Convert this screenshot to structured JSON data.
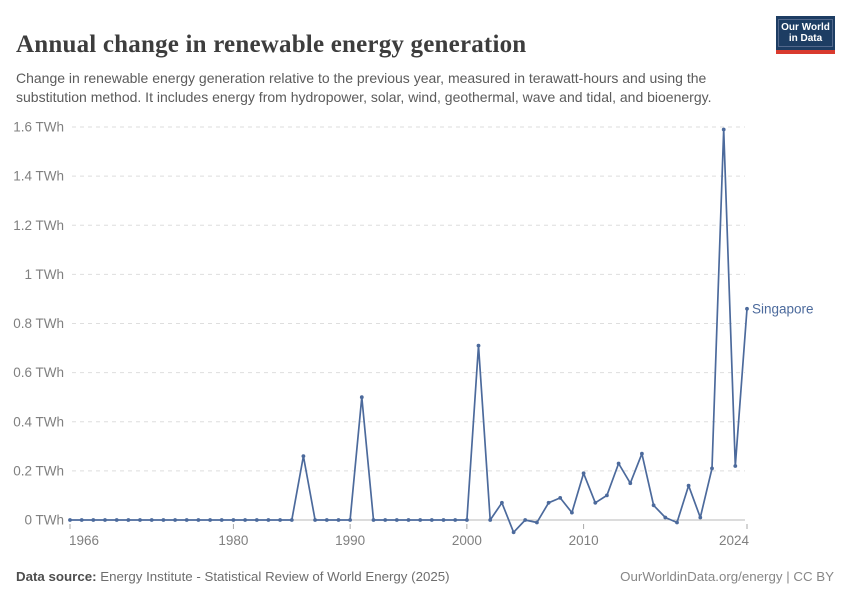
{
  "header": {
    "title": "Annual change in renewable energy generation",
    "subtitle": "Change in renewable energy generation relative to the previous year, measured in terawatt-hours and using the substitution method. It includes energy from hydropower, solar, wind, geothermal, wave and tidal, and bioenergy.",
    "logo": {
      "line1": "Our World",
      "line2": "in Data"
    }
  },
  "footer": {
    "source_label": "Data source:",
    "source_text": "Energy Institute - Statistical Review of World Energy (2025)",
    "credit": "OurWorldinData.org/energy | CC BY"
  },
  "colors": {
    "accent": "#4c6a9c",
    "logo_navy": "#1d3d63",
    "logo_red": "#d93a2e",
    "gridline": "#dedede",
    "zero_line": "#b8b8b8",
    "axis_text": "#808080"
  },
  "chart_data": {
    "type": "line",
    "title": "Annual change in renewable energy generation",
    "xlabel": "",
    "ylabel": "",
    "unit": "TWh",
    "xlim": [
      1966,
      2024
    ],
    "ylim": [
      0,
      1.6
    ],
    "grid": "horizontal dashed",
    "legend_position": "end-of-line label",
    "x_ticks": [
      1966,
      1980,
      1990,
      2000,
      2010,
      2024
    ],
    "y_ticks": [
      {
        "value": 0,
        "label": "0 TWh"
      },
      {
        "value": 0.2,
        "label": "0.2 TWh"
      },
      {
        "value": 0.4,
        "label": "0.4 TWh"
      },
      {
        "value": 0.6,
        "label": "0.6 TWh"
      },
      {
        "value": 0.8,
        "label": "0.8 TWh"
      },
      {
        "value": 1,
        "label": "1 TWh"
      },
      {
        "value": 1.2,
        "label": "1.2 TWh"
      },
      {
        "value": 1.4,
        "label": "1.4 TWh"
      },
      {
        "value": 1.6,
        "label": "1.6 TWh"
      }
    ],
    "series": [
      {
        "name": "Singapore",
        "color": "#4c6a9c",
        "x": [
          1966,
          1967,
          1968,
          1969,
          1970,
          1971,
          1972,
          1973,
          1974,
          1975,
          1976,
          1977,
          1978,
          1979,
          1980,
          1981,
          1982,
          1983,
          1984,
          1985,
          1986,
          1987,
          1988,
          1989,
          1990,
          1991,
          1992,
          1993,
          1994,
          1995,
          1996,
          1997,
          1998,
          1999,
          2000,
          2001,
          2002,
          2003,
          2004,
          2005,
          2006,
          2007,
          2008,
          2009,
          2010,
          2011,
          2012,
          2013,
          2014,
          2015,
          2016,
          2017,
          2018,
          2019,
          2020,
          2021,
          2022,
          2023,
          2024
        ],
        "values": [
          0,
          0,
          0,
          0,
          0,
          0,
          0,
          0,
          0,
          0,
          0,
          0,
          0,
          0,
          0,
          0,
          0,
          0,
          0,
          0,
          0.26,
          0,
          0,
          0,
          0,
          0.5,
          0,
          0,
          0,
          0,
          0,
          0,
          0,
          0,
          0,
          0.71,
          0,
          0.07,
          -0.05,
          0,
          -0.01,
          0.07,
          0.09,
          0.03,
          0.19,
          0.07,
          0.1,
          0.23,
          0.15,
          0.27,
          0.06,
          0.01,
          -0.01,
          0.14,
          0.01,
          0.21,
          1.59,
          0.22,
          0.86
        ]
      }
    ]
  }
}
